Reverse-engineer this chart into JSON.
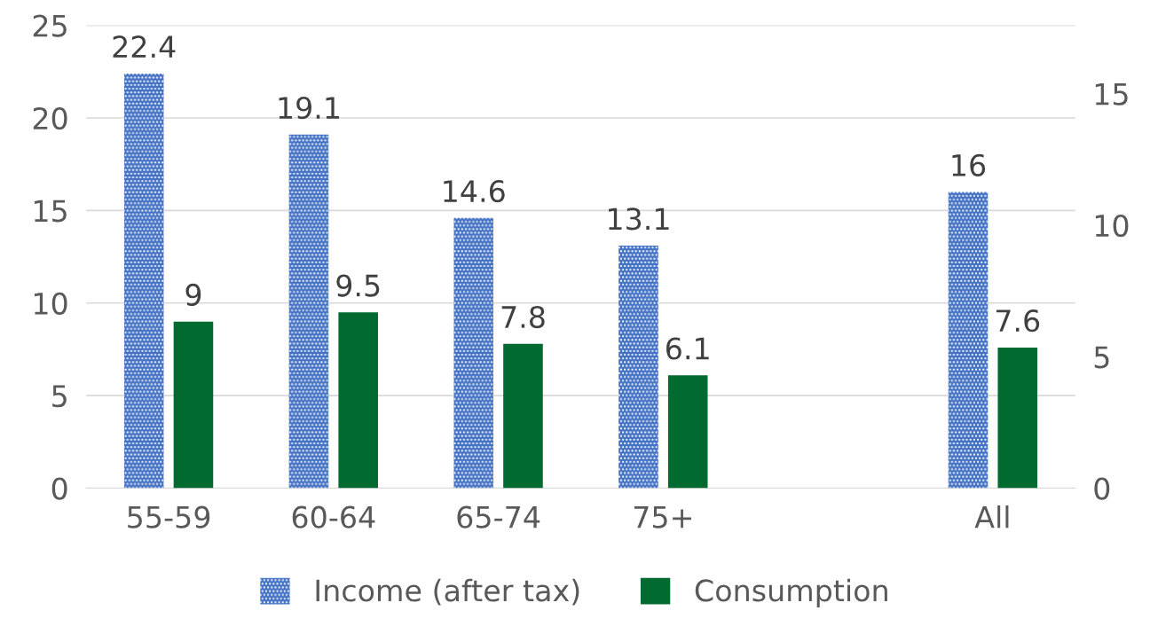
{
  "chart_data": {
    "type": "bar",
    "categories": [
      "55-59",
      "60-64",
      "65-74",
      "75+",
      null,
      "All"
    ],
    "series": [
      {
        "name": "Income (after tax)",
        "color": "#4472c4",
        "values": [
          22.4,
          19.1,
          14.6,
          13.1,
          null,
          16
        ]
      },
      {
        "name": "Consumption",
        "color": "#006a31",
        "values": [
          9,
          9.5,
          7.8,
          6.1,
          null,
          7.6
        ]
      }
    ],
    "ylim": [
      0,
      25
    ],
    "yticks": [
      0,
      5,
      10,
      15,
      20,
      25
    ],
    "y2lim": [
      0,
      17.6
    ],
    "y2ticks": [
      0,
      5,
      10,
      15
    ],
    "grid": "y",
    "legend": "bottom",
    "data_labels": true
  }
}
